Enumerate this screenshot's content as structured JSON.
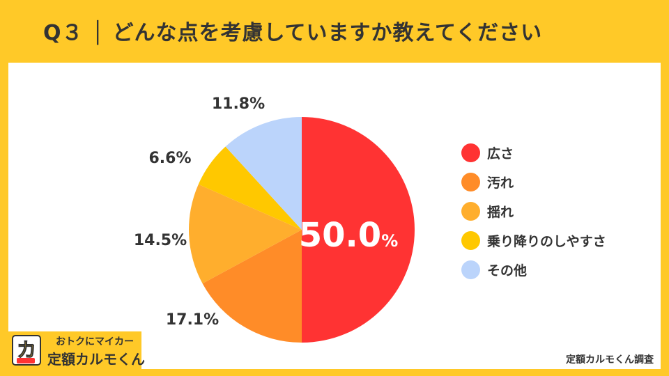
{
  "title": "Q３ │ どんな点を考慮していますか教えてください",
  "chart_data": {
    "type": "pie",
    "categories": [
      "広さ",
      "汚れ",
      "揺れ",
      "乗り降りのしやすさ",
      "その他"
    ],
    "values": [
      50.0,
      17.1,
      14.5,
      6.6,
      11.8
    ],
    "value_labels": [
      "50.0",
      "17.1%",
      "14.5%",
      "6.6%",
      "11.8%"
    ],
    "big_label_unit": "%",
    "colors": [
      "#FF3333",
      "#FF8C28",
      "#FFAE2D",
      "#FFC800",
      "#BBD4FB"
    ],
    "legend_position": "right"
  },
  "logo": {
    "top": "おトクにマイカー",
    "bottom": "定額カルモくん"
  },
  "footer": "定額カルモくん調査"
}
